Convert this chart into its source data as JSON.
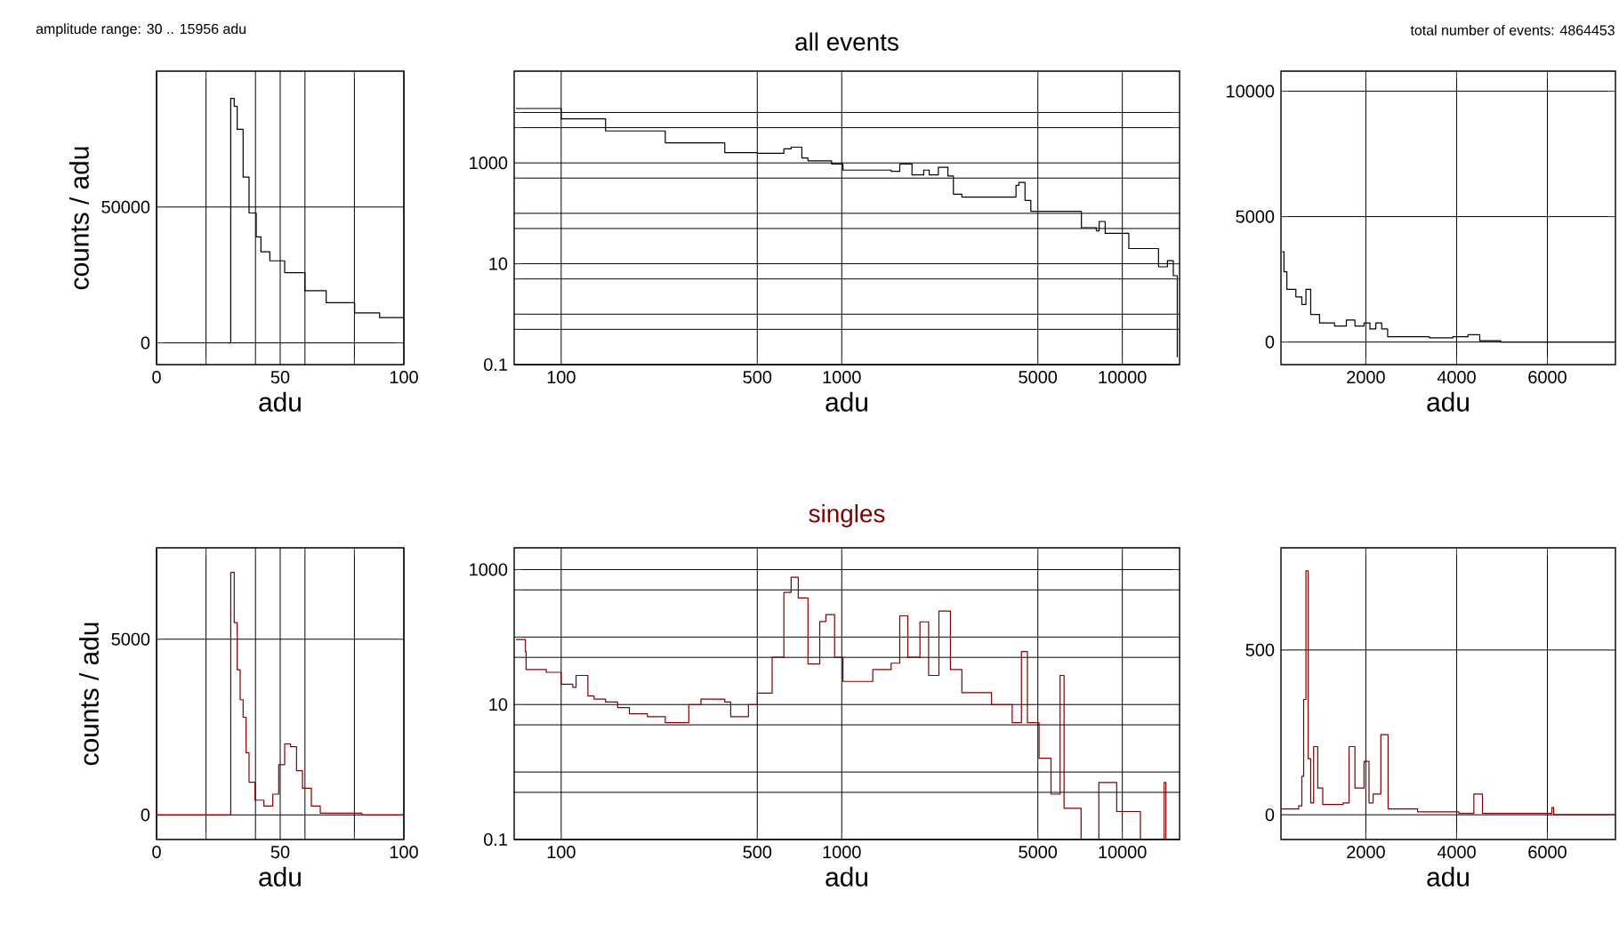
{
  "chart_data": [
    {
      "type": "step",
      "xlabel": "adu",
      "ylabel": "counts / adu",
      "annotations": [
        "amplitude range:    30 .. 15956 adu"
      ],
      "x": [
        29,
        30,
        31.4,
        32.6,
        35,
        37.4,
        40.3,
        42.2,
        45.8,
        51.8,
        60,
        68.6,
        80.1,
        90.2,
        100
      ],
      "series": [
        {
          "color": "#000000",
          "values": [
            0,
            90000,
            87000,
            78600,
            61000,
            47800,
            39000,
            33500,
            30200,
            25800,
            19200,
            14800,
            11000,
            9300,
            8200
          ]
        }
      ],
      "xlim": [
        0,
        100
      ],
      "ylim": [
        -8000,
        100000
      ],
      "xticks": [
        0,
        {
          "value": 20,
          "label": null
        },
        {
          "value": 40,
          "label": null
        },
        50,
        {
          "value": 60,
          "label": null
        },
        {
          "value": 80,
          "label": null
        },
        100
      ],
      "yticks": [
        0,
        50000
      ],
      "grid": true
    },
    {
      "type": "step",
      "title": "all events",
      "xlabel": "adu",
      "log": "xy",
      "x": [
        69,
        100,
        144,
        235,
        383,
        500,
        622,
        660,
        721,
        758,
        920,
        1010,
        1500,
        1610,
        1780,
        1960,
        2050,
        2210,
        2390,
        2500,
        2680,
        3790,
        4180,
        4280,
        4500,
        4720,
        7150,
        8080,
        8270,
        8690,
        10550,
        13460,
        14480,
        15200,
        15700
      ],
      "series": [
        {
          "color": "#000000",
          "values": [
            12000,
            7500,
            4300,
            2500,
            1600,
            1550,
            1900,
            2050,
            1250,
            1100,
            950,
            720,
            680,
            950,
            580,
            720,
            580,
            820,
            550,
            240,
            210,
            210,
            360,
            410,
            180,
            110,
            52,
            45,
            69,
            40,
            20,
            8.7,
            11.5,
            5.8,
            0.14
          ]
        }
      ],
      "xlim": [
        68,
        16000
      ],
      "ylim": [
        0.1,
        66000
      ],
      "xticks": [
        100,
        500,
        1000,
        5000,
        10000
      ],
      "yticks": [
        0.1,
        {
          "value": 0.5,
          "label": null
        },
        {
          "value": 1,
          "label": null
        },
        {
          "value": 5,
          "label": null
        },
        10,
        {
          "value": 50,
          "label": null
        },
        {
          "value": 100,
          "label": null
        },
        {
          "value": 500,
          "label": null
        },
        1000,
        {
          "value": 5000,
          "label": null
        },
        {
          "value": 10000,
          "label": null
        }
      ],
      "grid": true
    },
    {
      "type": "step",
      "xlabel": "adu",
      "annotations": [
        "total number of events: 4864453"
      ],
      "x": [
        157,
        196,
        260,
        458,
        590,
        680,
        785,
        980,
        1310,
        1570,
        1760,
        1960,
        2090,
        2220,
        2350,
        2480,
        3400,
        3920,
        4250,
        4510,
        4970,
        7490
      ],
      "series": [
        {
          "color": "#000000",
          "values": [
            3600,
            2800,
            2100,
            1800,
            1500,
            2100,
            1100,
            760,
            640,
            880,
            640,
            760,
            520,
            760,
            520,
            210,
            170,
            210,
            290,
            50,
            0,
            0
          ]
        }
      ],
      "xlim": [
        130,
        7500
      ],
      "ylim": [
        -900,
        10800
      ],
      "xticks": [
        2000,
        4000,
        6000
      ],
      "yticks": [
        0,
        5000,
        10000
      ],
      "grid": true
    },
    {
      "type": "step",
      "xlabel": "adu",
      "ylabel": "counts / adu",
      "x": [
        0,
        30,
        31.4,
        32.6,
        33.8,
        35,
        36.2,
        37.4,
        39.8,
        43.4,
        47,
        49.4,
        51.8,
        54.2,
        56.6,
        59,
        62.6,
        66.2,
        80.6,
        83,
        100
      ],
      "series": [
        {
          "color": "#800000",
          "values": [
            0,
            6900,
            5470,
            4130,
            3280,
            2780,
            1770,
            930,
            420,
            250,
            590,
            1430,
            2020,
            1940,
            1260,
            760,
            250,
            50,
            50,
            0,
            0
          ]
        }
      ],
      "xlim": [
        0,
        100
      ],
      "ylim": [
        -700,
        7600
      ],
      "xticks": [
        0,
        {
          "value": 20,
          "label": null
        },
        {
          "value": 40,
          "label": null
        },
        50,
        {
          "value": 60,
          "label": null
        },
        {
          "value": 80,
          "label": null
        },
        100
      ],
      "yticks": [
        0,
        5000
      ],
      "grid": true
    },
    {
      "type": "step",
      "title": "singles",
      "xlabel": "adu",
      "log": "xy",
      "x": [
        69,
        74.6,
        75,
        88.5,
        100,
        110,
        113,
        124.5,
        131,
        144,
        159,
        175,
        203,
        235,
        285,
        315,
        383,
        402,
        465,
        500,
        565,
        622,
        660,
        700,
        758,
        835,
        878,
        943,
        1010,
        1290,
        1500,
        1610,
        1720,
        1900,
        2040,
        2220,
        2440,
        2680,
        3420,
        4050,
        4370,
        4590,
        5050,
        5570,
        6000,
        6200,
        7130,
        8250,
        9550,
        11600,
        14100,
        14300
      ],
      "series": [
        {
          "color": "#800000",
          "values": [
            92,
            61,
            33,
            30,
            20,
            18,
            27,
            13.4,
            12,
            10.9,
            9,
            7.3,
            6.6,
            5.4,
            10,
            12,
            10.9,
            6.6,
            10,
            14.8,
            50,
            460,
            770,
            380,
            40,
            170,
            215,
            50,
            22,
            33,
            41,
            206,
            50,
            168,
            27,
            243,
            33,
            15,
            10,
            5.4,
            61,
            5.4,
            1.6,
            0.47,
            27,
            0.29,
            0.1,
            0.7,
            0.26,
            0.1,
            0.7,
            0.1
          ]
        }
      ],
      "xlim": [
        68,
        16000
      ],
      "ylim": [
        0.1,
        2100
      ],
      "xticks": [
        100,
        500,
        1000,
        5000,
        10000
      ],
      "yticks": [
        0.1,
        {
          "value": 0.5,
          "label": null
        },
        {
          "value": 1,
          "label": null
        },
        {
          "value": 5,
          "label": null
        },
        10,
        {
          "value": 50,
          "label": null
        },
        {
          "value": 100,
          "label": null
        },
        {
          "value": 500,
          "label": null
        },
        1000
      ],
      "grid": true
    },
    {
      "type": "step",
      "xlabel": "adu",
      "x": [
        130,
        520,
        590,
        630,
        680,
        730,
        785,
        850,
        940,
        1050,
        1500,
        1630,
        1760,
        1960,
        2070,
        2160,
        2330,
        2490,
        3140,
        4050,
        4380,
        4570,
        6100,
        6140,
        7490
      ],
      "series": [
        {
          "color": "#800000",
          "values": [
            18,
            27,
            117,
            350,
            740,
            170,
            36,
            207,
            81,
            31,
            36,
            207,
            81,
            162,
            36,
            63,
            243,
            18,
            9,
            4,
            63,
            4,
            22,
            0,
            0
          ]
        }
      ],
      "xlim": [
        130,
        7500
      ],
      "ylim": [
        -75,
        810
      ],
      "xticks": [
        2000,
        4000,
        6000
      ],
      "yticks": [
        0,
        500
      ],
      "grid": true
    }
  ]
}
